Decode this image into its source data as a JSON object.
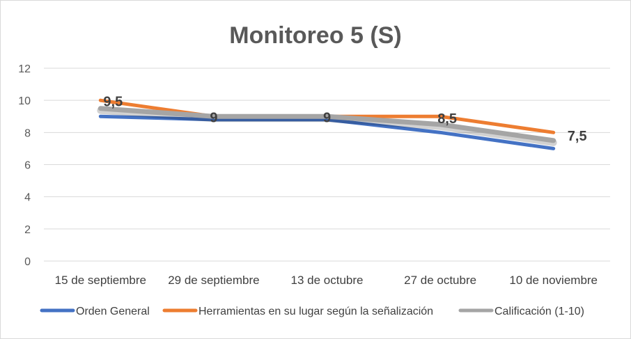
{
  "chart_data": {
    "type": "line",
    "title": "Monitoreo 5 (S)",
    "categories": [
      "15 de septiembre",
      "29 de septiembre",
      "13 de octubre",
      "27 de octubre",
      "10 de noviembre"
    ],
    "yticks": [
      "0",
      "2",
      "4",
      "6",
      "8",
      "10",
      "12"
    ],
    "ylim": [
      0,
      12
    ],
    "grid": true,
    "legend_position": "bottom",
    "series": [
      {
        "name": "Orden General",
        "values": [
          9,
          8.8,
          8.8,
          8,
          7
        ],
        "color": "#4472C4"
      },
      {
        "name": "Herramientas en su lugar según la señalización",
        "values": [
          10,
          9,
          9,
          9,
          8
        ],
        "color": "#ED7D31"
      },
      {
        "name": "Calificación (1-10)",
        "values": [
          9.5,
          9,
          9,
          8.5,
          7.5
        ],
        "color": "#A5A5A5"
      }
    ],
    "data_labels": [
      "9,5",
      "9",
      "9",
      "8,5",
      "7,5"
    ]
  }
}
